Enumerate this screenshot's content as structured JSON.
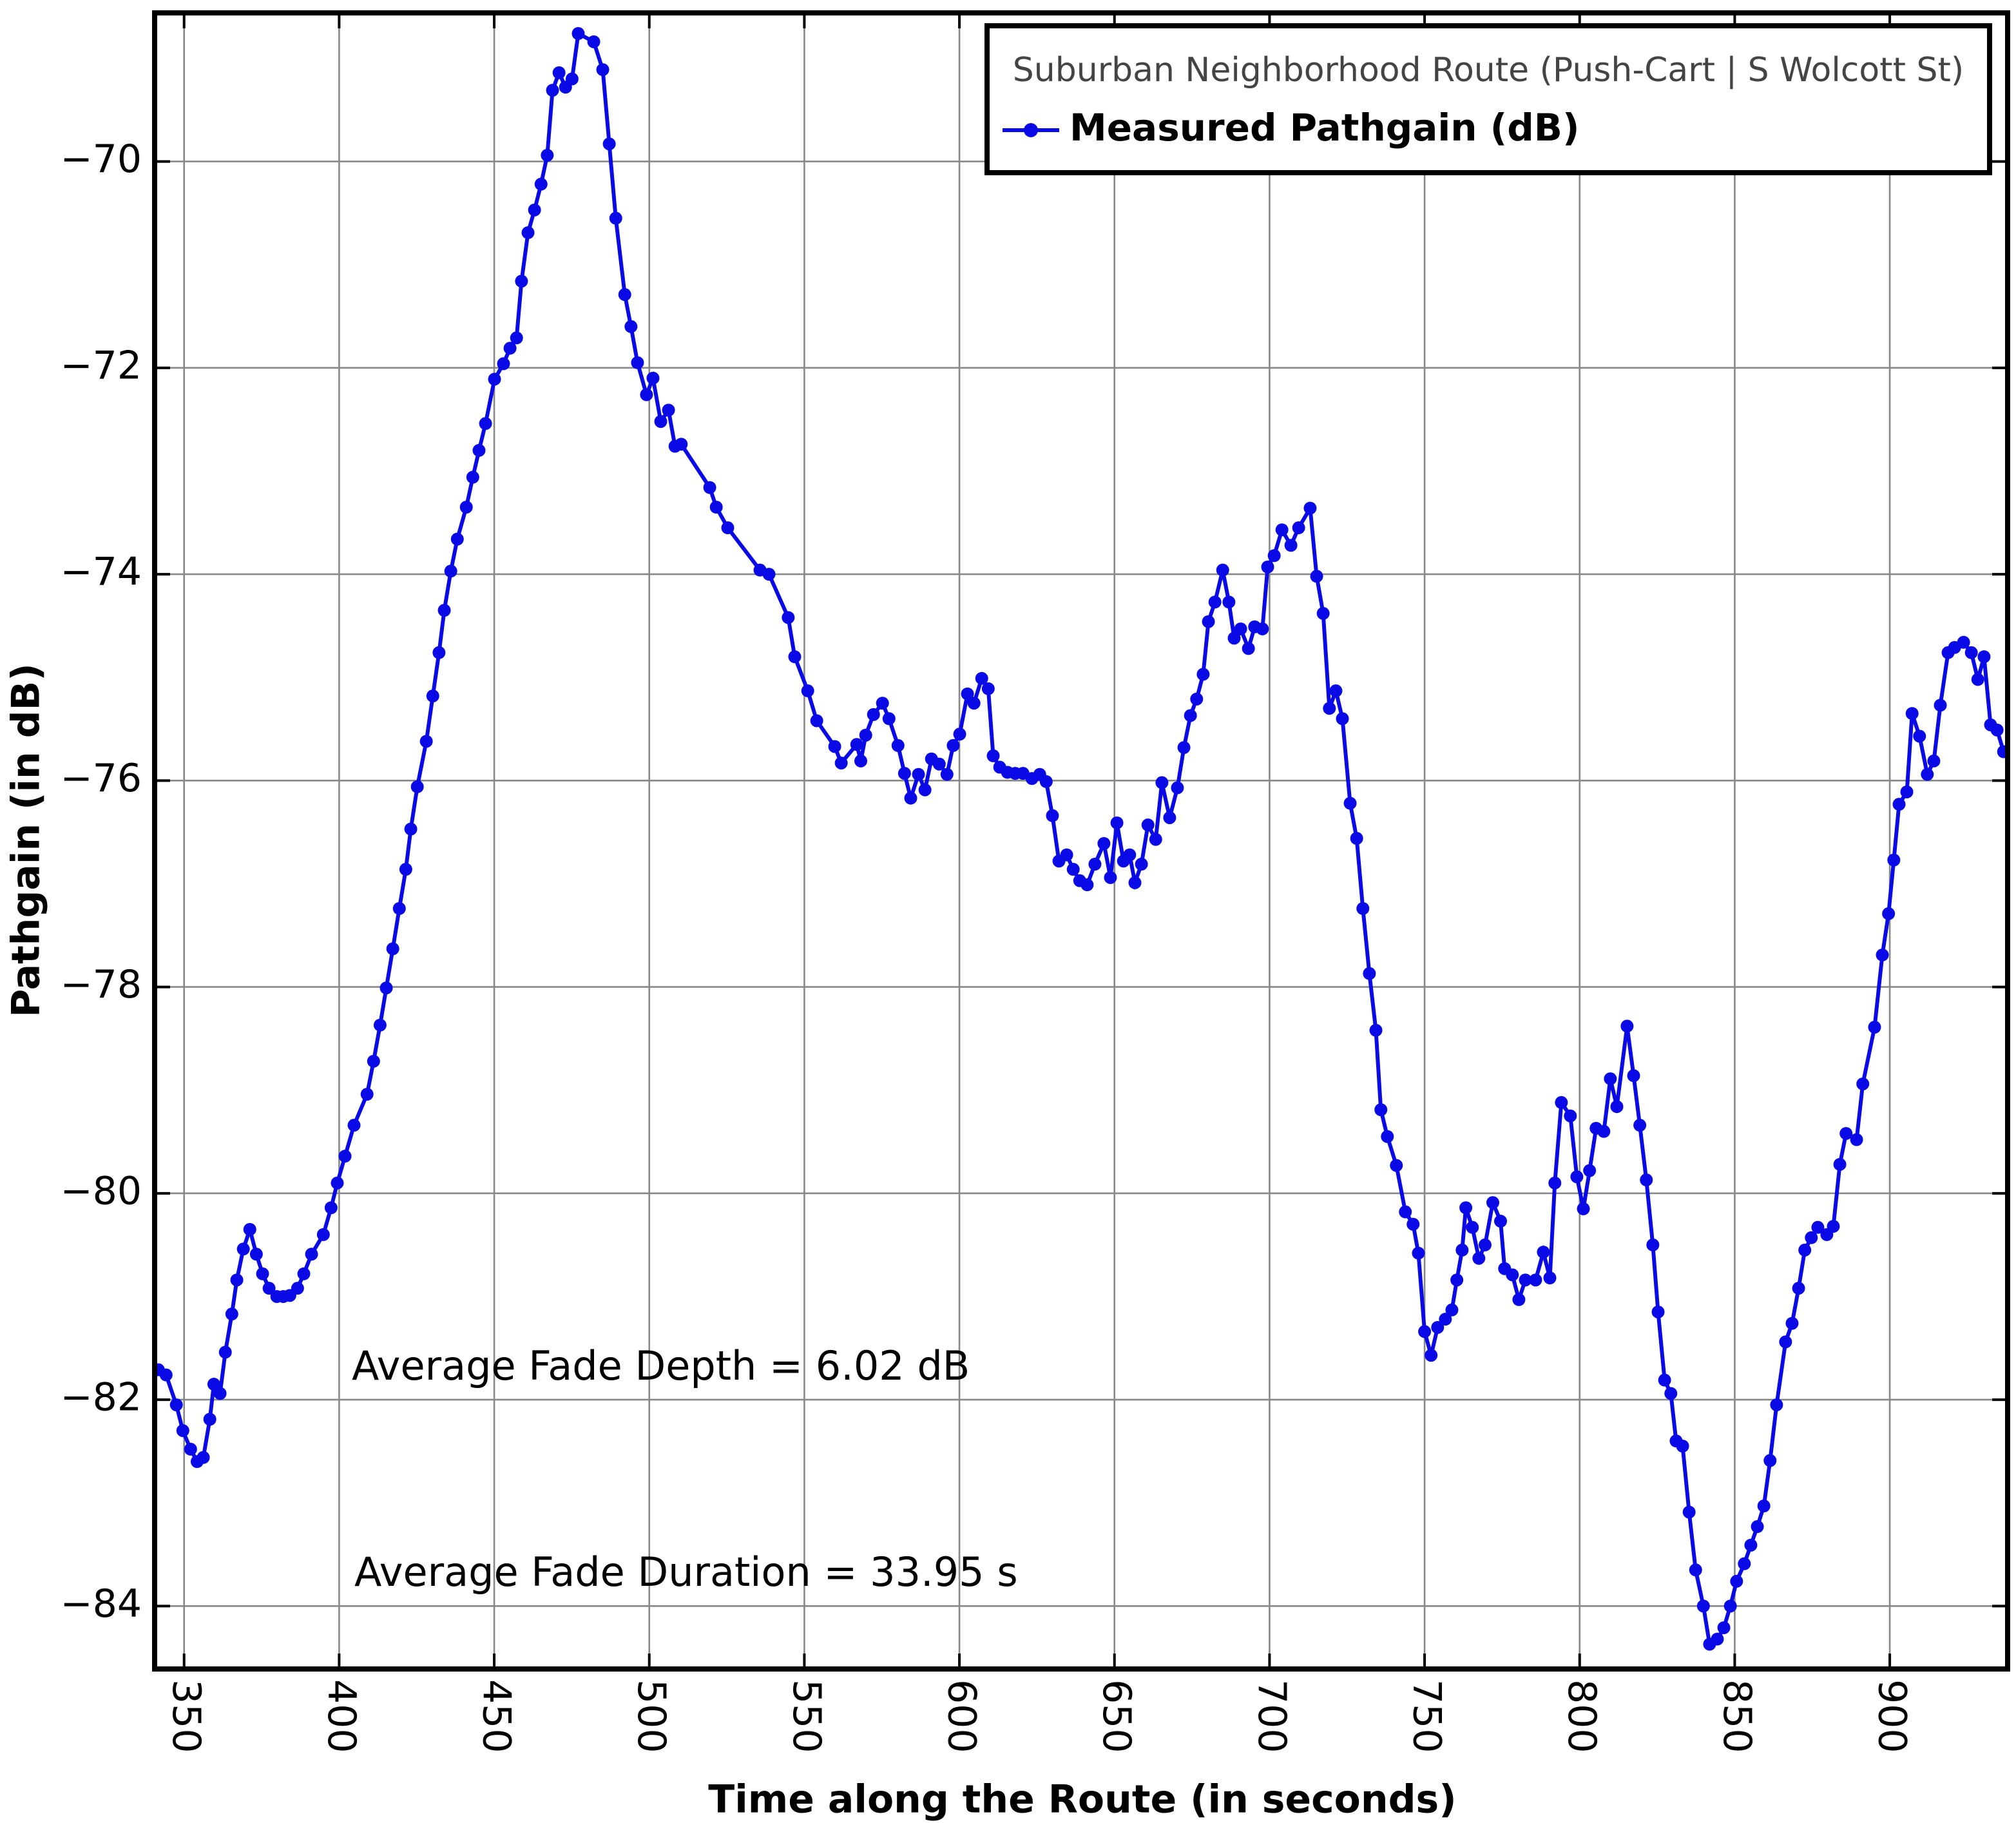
{
  "chart_data": {
    "type": "line",
    "xlabel": "Time along the Route (in seconds)",
    "ylabel": "Pathgain (in dB)",
    "legend_title": "Suburban Neighborhood Route (Push-Cart | S Wolcott St)",
    "legend_position": "upper right",
    "grid": true,
    "annotations": [
      "Average Fade Depth = 6.02 dB",
      "Average Fade Duration = 33.95 s"
    ],
    "xlim": [
      340.5,
      938
    ],
    "ylim": [
      -84.61,
      -68.56
    ],
    "xticks": [
      350,
      400,
      450,
      500,
      550,
      600,
      650,
      700,
      750,
      800,
      850,
      900
    ],
    "yticks": [
      {
        "value": -84,
        "label": "−84"
      },
      {
        "value": -82,
        "label": "−82"
      },
      {
        "value": -80,
        "label": "−80"
      },
      {
        "value": -78,
        "label": "−78"
      },
      {
        "value": -76,
        "label": "−76"
      },
      {
        "value": -74,
        "label": "−74"
      },
      {
        "value": -72,
        "label": "−72"
      },
      {
        "value": -70,
        "label": "−70"
      }
    ],
    "x": [
      341.7,
      344.2,
      347.5,
      349.6,
      352.1,
      354.2,
      356.2,
      358.3,
      359.6,
      361.6,
      363.3,
      365.4,
      367.0,
      369.1,
      371.2,
      373.3,
      375.3,
      377.4,
      379.9,
      382.0,
      384.1,
      386.6,
      388.6,
      391.1,
      394.9,
      397.4,
      399.4,
      401.9,
      404.8,
      409.0,
      411.1,
      413.2,
      415.2,
      417.3,
      419.4,
      421.5,
      423.1,
      425.2,
      428.1,
      430.2,
      432.2,
      433.9,
      436.0,
      438.1,
      441.0,
      443.1,
      445.1,
      447.2,
      450.1,
      453.0,
      455.1,
      457.2,
      458.8,
      460.9,
      463.0,
      465.1,
      467.1,
      468.8,
      470.9,
      473.0,
      475.1,
      477.1,
      482.1,
      485.0,
      487.1,
      489.2,
      492.1,
      494.1,
      496.2,
      499.1,
      501.2,
      503.7,
      506.2,
      508.3,
      510.3,
      519.5,
      521.6,
      525.3,
      535.7,
      538.6,
      544.8,
      546.9,
      551.1,
      554.0,
      559.8,
      561.9,
      566.9,
      568.2,
      569.8,
      572.3,
      575.2,
      577.3,
      580.2,
      582.3,
      584.3,
      586.8,
      588.9,
      591.0,
      593.5,
      596.0,
      598.0,
      600.1,
      602.6,
      604.7,
      607.2,
      609.3,
      610.9,
      613.0,
      615.5,
      618.0,
      620.5,
      623.4,
      625.9,
      628.0,
      630.0,
      632.1,
      634.6,
      636.7,
      638.8,
      641.2,
      643.7,
      646.6,
      648.7,
      650.8,
      652.9,
      654.9,
      656.6,
      658.7,
      660.8,
      663.3,
      665.3,
      667.8,
      670.3,
      672.4,
      674.5,
      676.5,
      678.6,
      680.3,
      682.4,
      684.9,
      686.9,
      688.6,
      690.7,
      693.2,
      695.2,
      697.7,
      699.4,
      701.5,
      704.0,
      706.9,
      709.4,
      713.1,
      715.2,
      717.3,
      719.3,
      721.4,
      723.5,
      726.0,
      728.1,
      730.1,
      732.2,
      734.3,
      735.9,
      738.0,
      740.9,
      743.8,
      746.3,
      748.0,
      750.0,
      752.1,
      754.2,
      756.7,
      758.8,
      760.4,
      762.1,
      763.3,
      765.4,
      767.5,
      769.5,
      772.0,
      774.5,
      775.8,
      778.3,
      780.4,
      782.5,
      785.8,
      788.3,
      790.4,
      792.0,
      794.1,
      797.0,
      799.1,
      801.2,
      803.2,
      805.3,
      807.8,
      809.9,
      812.0,
      815.3,
      817.4,
      819.4,
      821.5,
      823.6,
      825.3,
      827.4,
      829.4,
      831.1,
      833.2,
      835.3,
      837.4,
      839.9,
      841.9,
      844.4,
      846.5,
      848.6,
      850.6,
      853.1,
      855.2,
      857.3,
      859.4,
      861.4,
      863.5,
      866.4,
      868.5,
      870.6,
      872.6,
      874.7,
      876.8,
      879.7,
      881.8,
      883.9,
      885.9,
      889.3,
      891.3,
      895.1,
      897.6,
      899.6,
      901.3,
      903.0,
      905.5,
      907.2,
      909.6,
      912.1,
      914.2,
      916.3,
      918.8,
      920.9,
      923.8,
      926.3,
      928.4,
      930.4,
      932.5,
      934.6,
      936.7
    ],
    "series": [
      {
        "name": "Measured Pathgain (dB)",
        "color": "#0a0ae6",
        "values": [
          -81.71,
          -81.76,
          -82.05,
          -82.3,
          -82.48,
          -82.6,
          -82.56,
          -82.19,
          -81.85,
          -81.94,
          -81.54,
          -81.17,
          -80.84,
          -80.54,
          -80.35,
          -80.59,
          -80.78,
          -80.92,
          -81.0,
          -81.0,
          -80.99,
          -80.92,
          -80.78,
          -80.59,
          -80.4,
          -80.14,
          -79.9,
          -79.64,
          -79.34,
          -79.04,
          -78.72,
          -78.37,
          -78.01,
          -77.63,
          -77.24,
          -76.86,
          -76.47,
          -76.06,
          -75.62,
          -75.18,
          -74.76,
          -74.35,
          -73.97,
          -73.66,
          -73.35,
          -73.06,
          -72.8,
          -72.54,
          -72.11,
          -71.96,
          -71.81,
          -71.71,
          -71.16,
          -70.69,
          -70.47,
          -70.22,
          -69.94,
          -69.31,
          -69.14,
          -69.28,
          -69.2,
          -68.76,
          -68.84,
          -69.11,
          -69.83,
          -70.55,
          -71.29,
          -71.6,
          -71.95,
          -72.26,
          -72.1,
          -72.52,
          -72.41,
          -72.76,
          -72.74,
          -73.16,
          -73.35,
          -73.55,
          -73.96,
          -74.0,
          -74.42,
          -74.8,
          -75.13,
          -75.42,
          -75.67,
          -75.83,
          -75.65,
          -75.81,
          -75.56,
          -75.36,
          -75.25,
          -75.4,
          -75.66,
          -75.93,
          -76.17,
          -75.94,
          -76.09,
          -75.79,
          -75.84,
          -75.94,
          -75.66,
          -75.55,
          -75.16,
          -75.25,
          -75.01,
          -75.11,
          -75.76,
          -75.87,
          -75.92,
          -75.93,
          -75.93,
          -75.98,
          -75.94,
          -76.01,
          -76.34,
          -76.78,
          -76.72,
          -76.86,
          -76.97,
          -77.01,
          -76.81,
          -76.61,
          -76.94,
          -76.41,
          -76.78,
          -76.72,
          -76.99,
          -76.81,
          -76.43,
          -76.57,
          -76.02,
          -76.36,
          -76.07,
          -75.68,
          -75.37,
          -75.21,
          -74.97,
          -74.46,
          -74.27,
          -73.96,
          -74.27,
          -74.62,
          -74.53,
          -74.72,
          -74.51,
          -74.53,
          -73.93,
          -73.82,
          -73.57,
          -73.72,
          -73.55,
          -73.36,
          -74.02,
          -74.38,
          -75.3,
          -75.13,
          -75.4,
          -76.22,
          -76.56,
          -77.24,
          -77.87,
          -78.42,
          -79.19,
          -79.45,
          -79.73,
          -80.18,
          -80.3,
          -80.58,
          -81.34,
          -81.57,
          -81.3,
          -81.22,
          -81.13,
          -80.84,
          -80.55,
          -80.14,
          -80.33,
          -80.63,
          -80.5,
          -80.09,
          -80.27,
          -80.73,
          -80.79,
          -81.03,
          -80.84,
          -80.84,
          -80.57,
          -80.82,
          -79.9,
          -79.12,
          -79.25,
          -79.84,
          -80.15,
          -79.78,
          -79.37,
          -79.4,
          -78.89,
          -79.16,
          -78.38,
          -78.86,
          -79.34,
          -79.87,
          -80.5,
          -81.15,
          -81.81,
          -81.94,
          -82.4,
          -82.45,
          -83.09,
          -83.65,
          -84.0,
          -84.37,
          -84.32,
          -84.21,
          -84.0,
          -83.76,
          -83.59,
          -83.41,
          -83.23,
          -83.03,
          -82.59,
          -82.05,
          -81.44,
          -81.26,
          -80.92,
          -80.55,
          -80.43,
          -80.33,
          -80.4,
          -80.32,
          -79.72,
          -79.42,
          -79.48,
          -78.94,
          -78.39,
          -77.69,
          -77.29,
          -76.77,
          -76.23,
          -76.11,
          -75.35,
          -75.57,
          -75.94,
          -75.81,
          -75.27,
          -74.76,
          -74.71,
          -74.66,
          -74.76,
          -75.02,
          -74.8,
          -75.46,
          -75.51,
          -75.72
        ]
      }
    ]
  }
}
